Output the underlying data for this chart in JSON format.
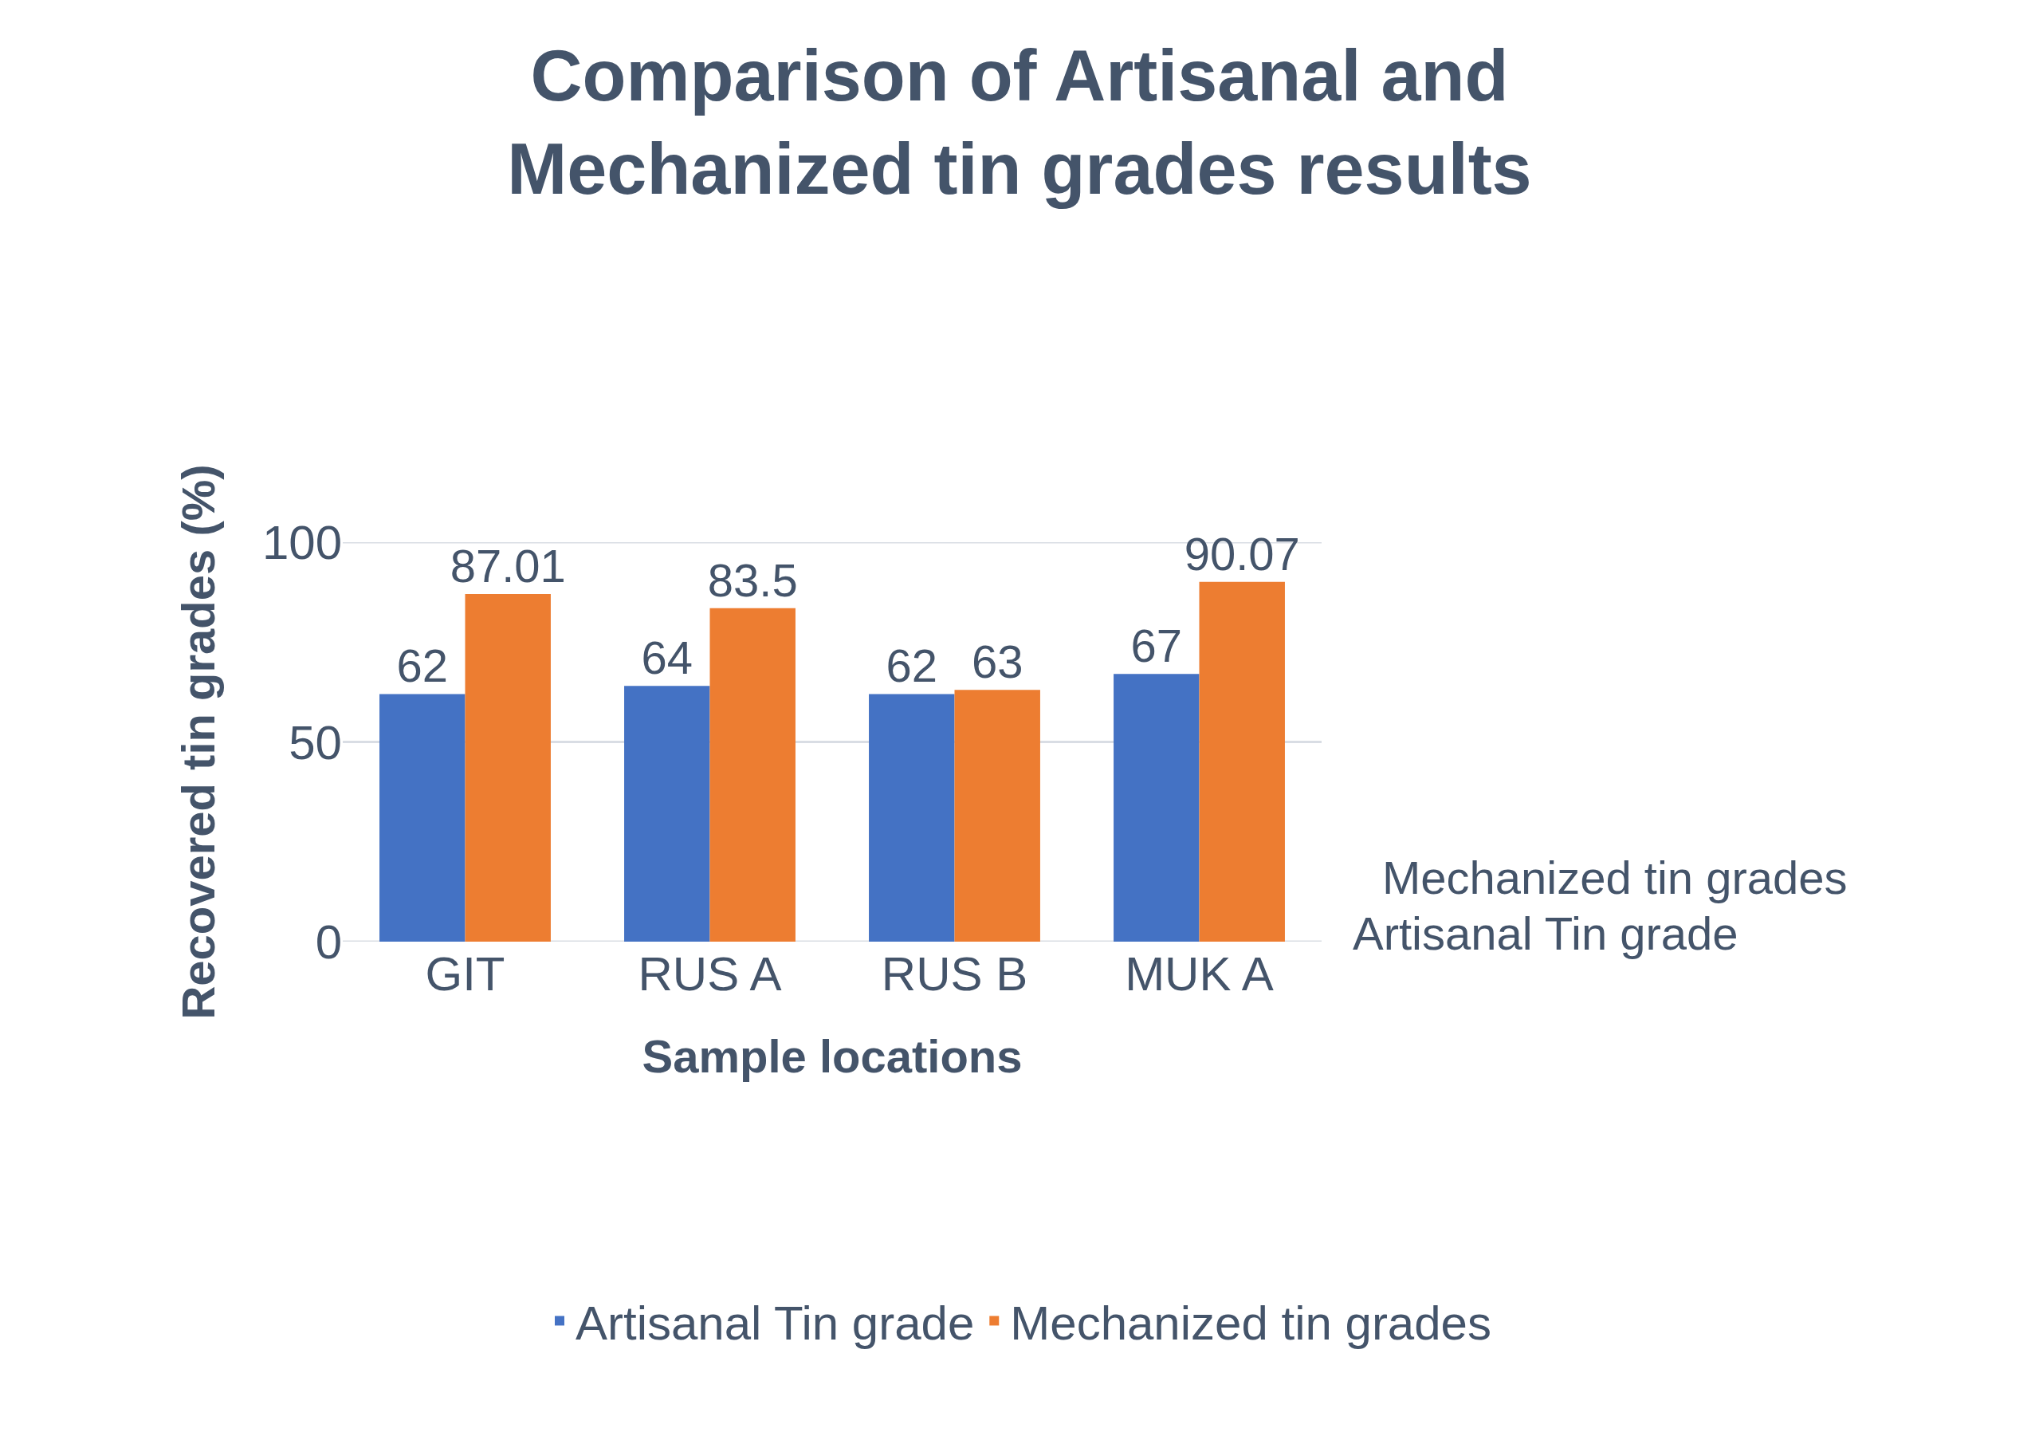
{
  "chart_data": {
    "type": "bar",
    "title": "Comparison of Artisanal and Mechanized tin grades results",
    "xlabel": "Sample locations",
    "ylabel": "Recovered tin grades (%)",
    "categories": [
      "GIT",
      "RUS A",
      "RUS B",
      "MUK A"
    ],
    "series": [
      {
        "name": "Artisanal Tin grade",
        "color": "#4472c4",
        "values": [
          62,
          64,
          62,
          67
        ]
      },
      {
        "name": "Mechanized tin grades",
        "color": "#ed7d31",
        "values": [
          87.01,
          83.5,
          63,
          90.07
        ]
      }
    ],
    "ylim": [
      0,
      100
    ],
    "yticks": [
      0,
      50,
      100
    ],
    "grid": "y",
    "legend": "bottom",
    "data_labels": true
  }
}
